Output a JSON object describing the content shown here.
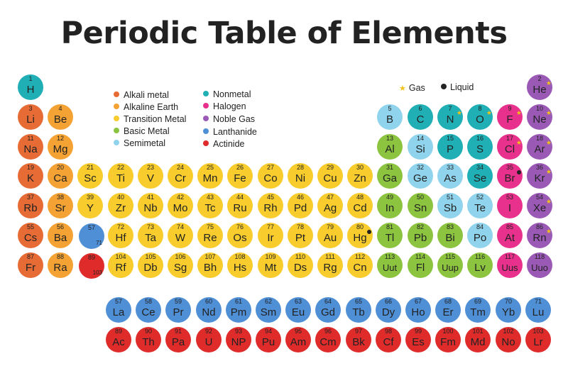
{
  "title": "Periodic Table of Elements",
  "legend": {
    "categories": [
      {
        "key": "alkali",
        "label": "Alkali metal",
        "color": "#e66b35"
      },
      {
        "key": "alkearth",
        "label": "Alkaline Earth",
        "color": "#f4a233"
      },
      {
        "key": "transition",
        "label": "Transition Metal",
        "color": "#f7cc2c"
      },
      {
        "key": "basic",
        "label": "Basic Metal",
        "color": "#8cc43f"
      },
      {
        "key": "semi",
        "label": "Semimetal",
        "color": "#8fd3ec"
      },
      {
        "key": "nonmetal",
        "label": "Nonmetal",
        "color": "#1fafb5"
      },
      {
        "key": "halogen",
        "label": "Halogen",
        "color": "#e8318c"
      },
      {
        "key": "noble",
        "label": "Noble Gas",
        "color": "#9b59b6"
      },
      {
        "key": "lanthanide",
        "label": "Lanthanide",
        "color": "#4f8fd6"
      },
      {
        "key": "actinide",
        "label": "Actinide",
        "color": "#e02b2b"
      }
    ],
    "gas_label": "Gas",
    "liquid_label": "Liquid"
  },
  "placeholders": {
    "lanthanide_range_start": "57",
    "lanthanide_range_end": "71",
    "actinide_range_start": "89",
    "actinide_range_end": "103"
  },
  "elements": [
    {
      "n": "1",
      "s": "H",
      "c": "nonmetal",
      "p": 1,
      "g": 1
    },
    {
      "n": "2",
      "s": "He",
      "c": "noble",
      "p": 1,
      "g": 18,
      "st": "gas"
    },
    {
      "n": "3",
      "s": "Li",
      "c": "alkali",
      "p": 2,
      "g": 1
    },
    {
      "n": "4",
      "s": "Be",
      "c": "alkearth",
      "p": 2,
      "g": 2
    },
    {
      "n": "5",
      "s": "B",
      "c": "semi",
      "p": 2,
      "g": 13
    },
    {
      "n": "6",
      "s": "C",
      "c": "nonmetal",
      "p": 2,
      "g": 14
    },
    {
      "n": "7",
      "s": "N",
      "c": "nonmetal",
      "p": 2,
      "g": 15,
      "st": "gas"
    },
    {
      "n": "8",
      "s": "O",
      "c": "nonmetal",
      "p": 2,
      "g": 16,
      "st": "gas"
    },
    {
      "n": "9",
      "s": "F",
      "c": "halogen",
      "p": 2,
      "g": 17,
      "st": "gas"
    },
    {
      "n": "10",
      "s": "Ne",
      "c": "noble",
      "p": 2,
      "g": 18,
      "st": "gas"
    },
    {
      "n": "11",
      "s": "Na",
      "c": "alkali",
      "p": 3,
      "g": 1
    },
    {
      "n": "12",
      "s": "Mg",
      "c": "alkearth",
      "p": 3,
      "g": 2
    },
    {
      "n": "13",
      "s": "Al",
      "c": "basic",
      "p": 3,
      "g": 13
    },
    {
      "n": "14",
      "s": "Si",
      "c": "semi",
      "p": 3,
      "g": 14
    },
    {
      "n": "15",
      "s": "P",
      "c": "nonmetal",
      "p": 3,
      "g": 15
    },
    {
      "n": "16",
      "s": "S",
      "c": "nonmetal",
      "p": 3,
      "g": 16
    },
    {
      "n": "17",
      "s": "Cl",
      "c": "halogen",
      "p": 3,
      "g": 17,
      "st": "gas"
    },
    {
      "n": "18",
      "s": "Ar",
      "c": "noble",
      "p": 3,
      "g": 18,
      "st": "gas"
    },
    {
      "n": "19",
      "s": "K",
      "c": "alkali",
      "p": 4,
      "g": 1
    },
    {
      "n": "20",
      "s": "Ca",
      "c": "alkearth",
      "p": 4,
      "g": 2
    },
    {
      "n": "21",
      "s": "Sc",
      "c": "transition",
      "p": 4,
      "g": 3
    },
    {
      "n": "22",
      "s": "Ti",
      "c": "transition",
      "p": 4,
      "g": 4
    },
    {
      "n": "23",
      "s": "V",
      "c": "transition",
      "p": 4,
      "g": 5
    },
    {
      "n": "24",
      "s": "Cr",
      "c": "transition",
      "p": 4,
      "g": 6
    },
    {
      "n": "25",
      "s": "Mn",
      "c": "transition",
      "p": 4,
      "g": 7
    },
    {
      "n": "26",
      "s": "Fe",
      "c": "transition",
      "p": 4,
      "g": 8
    },
    {
      "n": "27",
      "s": "Co",
      "c": "transition",
      "p": 4,
      "g": 9
    },
    {
      "n": "28",
      "s": "Ni",
      "c": "transition",
      "p": 4,
      "g": 10
    },
    {
      "n": "29",
      "s": "Cu",
      "c": "transition",
      "p": 4,
      "g": 11
    },
    {
      "n": "30",
      "s": "Zn",
      "c": "transition",
      "p": 4,
      "g": 12
    },
    {
      "n": "31",
      "s": "Ga",
      "c": "basic",
      "p": 4,
      "g": 13
    },
    {
      "n": "32",
      "s": "Ge",
      "c": "semi",
      "p": 4,
      "g": 14
    },
    {
      "n": "33",
      "s": "As",
      "c": "semi",
      "p": 4,
      "g": 15
    },
    {
      "n": "34",
      "s": "Se",
      "c": "nonmetal",
      "p": 4,
      "g": 16
    },
    {
      "n": "35",
      "s": "Br",
      "c": "halogen",
      "p": 4,
      "g": 17,
      "st": "liquid"
    },
    {
      "n": "36",
      "s": "Kr",
      "c": "noble",
      "p": 4,
      "g": 18,
      "st": "gas"
    },
    {
      "n": "37",
      "s": "Rb",
      "c": "alkali",
      "p": 5,
      "g": 1
    },
    {
      "n": "38",
      "s": "Sr",
      "c": "alkearth",
      "p": 5,
      "g": 2
    },
    {
      "n": "39",
      "s": "Y",
      "c": "transition",
      "p": 5,
      "g": 3
    },
    {
      "n": "40",
      "s": "Zr",
      "c": "transition",
      "p": 5,
      "g": 4
    },
    {
      "n": "41",
      "s": "Nb",
      "c": "transition",
      "p": 5,
      "g": 5
    },
    {
      "n": "42",
      "s": "Mo",
      "c": "transition",
      "p": 5,
      "g": 6
    },
    {
      "n": "43",
      "s": "Tc",
      "c": "transition",
      "p": 5,
      "g": 7
    },
    {
      "n": "44",
      "s": "Ru",
      "c": "transition",
      "p": 5,
      "g": 8
    },
    {
      "n": "45",
      "s": "Rh",
      "c": "transition",
      "p": 5,
      "g": 9
    },
    {
      "n": "46",
      "s": "Pd",
      "c": "transition",
      "p": 5,
      "g": 10
    },
    {
      "n": "47",
      "s": "Ag",
      "c": "transition",
      "p": 5,
      "g": 11
    },
    {
      "n": "48",
      "s": "Cd",
      "c": "transition",
      "p": 5,
      "g": 12
    },
    {
      "n": "49",
      "s": "In",
      "c": "basic",
      "p": 5,
      "g": 13
    },
    {
      "n": "50",
      "s": "Sn",
      "c": "basic",
      "p": 5,
      "g": 14
    },
    {
      "n": "51",
      "s": "Sb",
      "c": "semi",
      "p": 5,
      "g": 15
    },
    {
      "n": "52",
      "s": "Te",
      "c": "semi",
      "p": 5,
      "g": 16
    },
    {
      "n": "53",
      "s": "I",
      "c": "halogen",
      "p": 5,
      "g": 17
    },
    {
      "n": "54",
      "s": "Xe",
      "c": "noble",
      "p": 5,
      "g": 18,
      "st": "gas"
    },
    {
      "n": "55",
      "s": "Cs",
      "c": "alkali",
      "p": 6,
      "g": 1
    },
    {
      "n": "56",
      "s": "Ba",
      "c": "alkearth",
      "p": 6,
      "g": 2
    },
    {
      "n": "72",
      "s": "Hf",
      "c": "transition",
      "p": 6,
      "g": 4
    },
    {
      "n": "73",
      "s": "Ta",
      "c": "transition",
      "p": 6,
      "g": 5
    },
    {
      "n": "74",
      "s": "W",
      "c": "transition",
      "p": 6,
      "g": 6
    },
    {
      "n": "75",
      "s": "Re",
      "c": "transition",
      "p": 6,
      "g": 7
    },
    {
      "n": "76",
      "s": "Os",
      "c": "transition",
      "p": 6,
      "g": 8
    },
    {
      "n": "77",
      "s": "Ir",
      "c": "transition",
      "p": 6,
      "g": 9
    },
    {
      "n": "78",
      "s": "Pt",
      "c": "transition",
      "p": 6,
      "g": 10
    },
    {
      "n": "79",
      "s": "Au",
      "c": "transition",
      "p": 6,
      "g": 11
    },
    {
      "n": "80",
      "s": "Hg",
      "c": "transition",
      "p": 6,
      "g": 12,
      "st": "liquid"
    },
    {
      "n": "81",
      "s": "Tl",
      "c": "basic",
      "p": 6,
      "g": 13
    },
    {
      "n": "82",
      "s": "Pb",
      "c": "basic",
      "p": 6,
      "g": 14
    },
    {
      "n": "83",
      "s": "Bi",
      "c": "basic",
      "p": 6,
      "g": 15
    },
    {
      "n": "84",
      "s": "Po",
      "c": "semi",
      "p": 6,
      "g": 16
    },
    {
      "n": "85",
      "s": "At",
      "c": "halogen",
      "p": 6,
      "g": 17
    },
    {
      "n": "86",
      "s": "Rn",
      "c": "noble",
      "p": 6,
      "g": 18,
      "st": "gas"
    },
    {
      "n": "87",
      "s": "Fr",
      "c": "alkali",
      "p": 7,
      "g": 1
    },
    {
      "n": "88",
      "s": "Ra",
      "c": "alkearth",
      "p": 7,
      "g": 2
    },
    {
      "n": "104",
      "s": "Rf",
      "c": "transition",
      "p": 7,
      "g": 4
    },
    {
      "n": "105",
      "s": "Db",
      "c": "transition",
      "p": 7,
      "g": 5
    },
    {
      "n": "106",
      "s": "Sg",
      "c": "transition",
      "p": 7,
      "g": 6
    },
    {
      "n": "107",
      "s": "Bh",
      "c": "transition",
      "p": 7,
      "g": 7
    },
    {
      "n": "108",
      "s": "Hs",
      "c": "transition",
      "p": 7,
      "g": 8
    },
    {
      "n": "109",
      "s": "Mt",
      "c": "transition",
      "p": 7,
      "g": 9
    },
    {
      "n": "110",
      "s": "Ds",
      "c": "transition",
      "p": 7,
      "g": 10
    },
    {
      "n": "111",
      "s": "Rg",
      "c": "transition",
      "p": 7,
      "g": 11
    },
    {
      "n": "112",
      "s": "Cn",
      "c": "transition",
      "p": 7,
      "g": 12
    },
    {
      "n": "113",
      "s": "Uut",
      "c": "basic",
      "p": 7,
      "g": 13
    },
    {
      "n": "114",
      "s": "Fl",
      "c": "basic",
      "p": 7,
      "g": 14
    },
    {
      "n": "115",
      "s": "Uup",
      "c": "basic",
      "p": 7,
      "g": 15
    },
    {
      "n": "116",
      "s": "Lv",
      "c": "basic",
      "p": 7,
      "g": 16
    },
    {
      "n": "117",
      "s": "Uus",
      "c": "halogen",
      "p": 7,
      "g": 17
    },
    {
      "n": "118",
      "s": "Uuo",
      "c": "noble",
      "p": 7,
      "g": 18
    }
  ],
  "lanthanides": [
    {
      "n": "57",
      "s": "La"
    },
    {
      "n": "58",
      "s": "Ce"
    },
    {
      "n": "59",
      "s": "Pr"
    },
    {
      "n": "60",
      "s": "Nd"
    },
    {
      "n": "61",
      "s": "Pm"
    },
    {
      "n": "62",
      "s": "Sm"
    },
    {
      "n": "63",
      "s": "Eu"
    },
    {
      "n": "64",
      "s": "Gd"
    },
    {
      "n": "65",
      "s": "Tb"
    },
    {
      "n": "66",
      "s": "Dy"
    },
    {
      "n": "67",
      "s": "Ho"
    },
    {
      "n": "68",
      "s": "Er"
    },
    {
      "n": "69",
      "s": "Tm"
    },
    {
      "n": "70",
      "s": "Yb"
    },
    {
      "n": "71",
      "s": "Lu"
    }
  ],
  "actinides": [
    {
      "n": "89",
      "s": "Ac"
    },
    {
      "n": "90",
      "s": "Th"
    },
    {
      "n": "91",
      "s": "Pa"
    },
    {
      "n": "92",
      "s": "U"
    },
    {
      "n": "93",
      "s": "NP"
    },
    {
      "n": "94",
      "s": "Pu"
    },
    {
      "n": "95",
      "s": "Am"
    },
    {
      "n": "96",
      "s": "Cm"
    },
    {
      "n": "97",
      "s": "Bk"
    },
    {
      "n": "98",
      "s": "Cf"
    },
    {
      "n": "99",
      "s": "Es"
    },
    {
      "n": "100",
      "s": "Fm"
    },
    {
      "n": "101",
      "s": "Md"
    },
    {
      "n": "102",
      "s": "No"
    },
    {
      "n": "103",
      "s": "Lr"
    }
  ]
}
